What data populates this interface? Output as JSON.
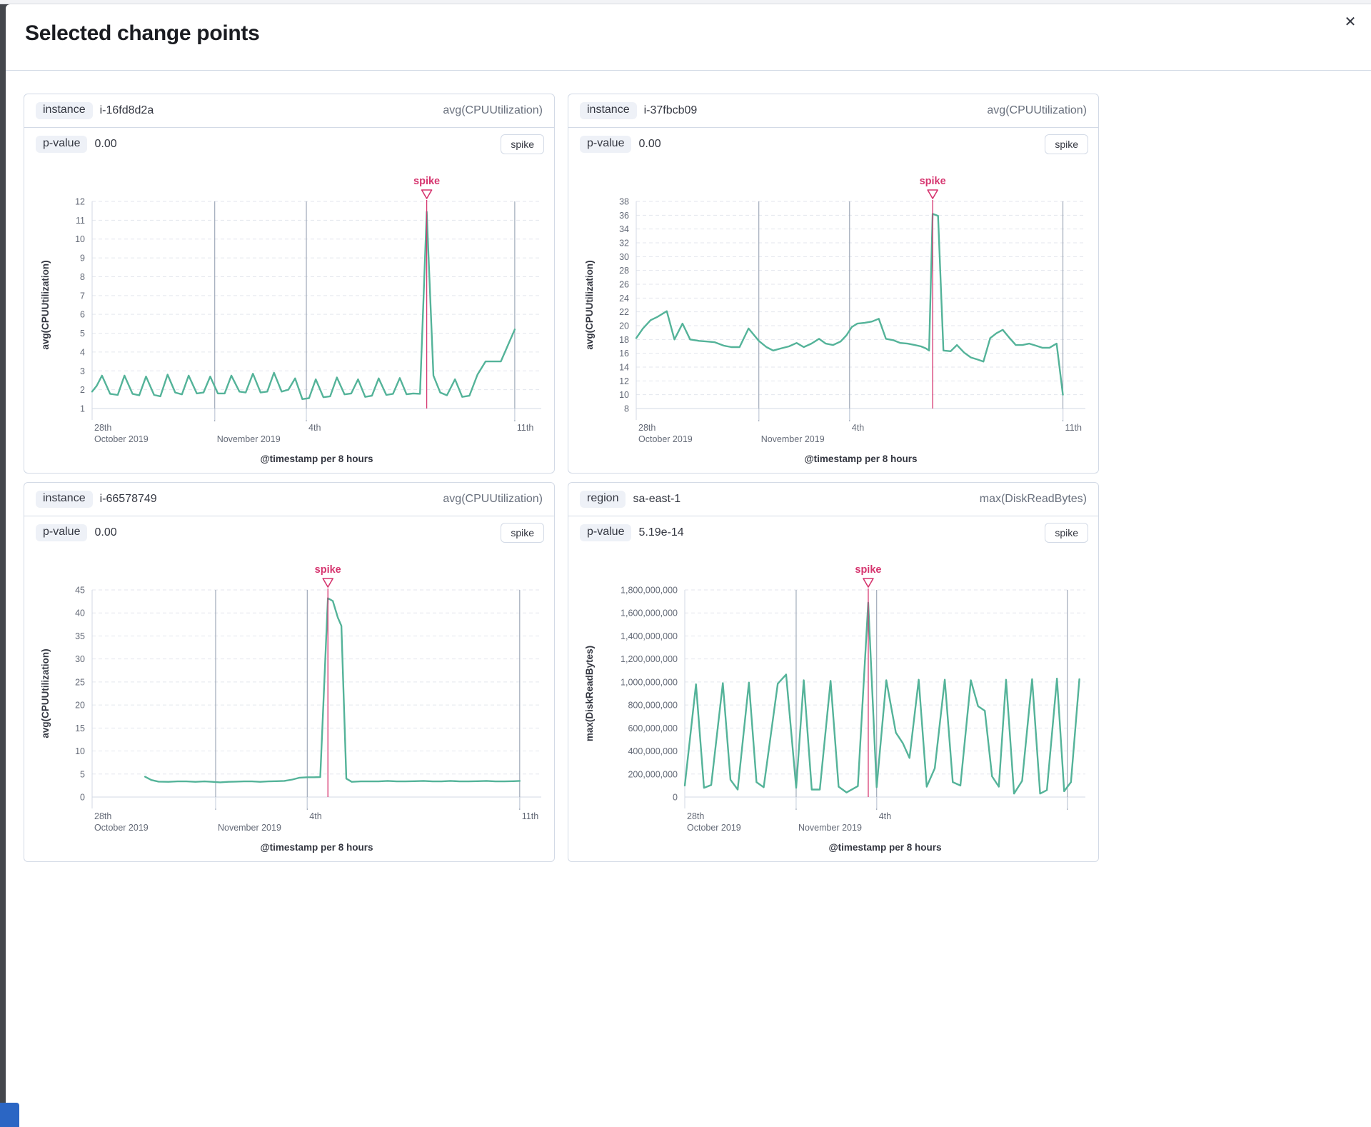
{
  "modal": {
    "title": "Selected change points",
    "close_icon": "✕"
  },
  "colors": {
    "series": "#54B399",
    "annotation": "#D6356F",
    "event_line": "#98A2B3",
    "grid": "#E3E6ED",
    "axis": "#D3DAE6",
    "tick_text": "#646A77",
    "title_text": "#343741"
  },
  "panels": [
    {
      "key_label": "instance",
      "key_value": "i-16fd8d2a",
      "metric": "avg(CPUUtilization)",
      "p_label": "p-value",
      "p_value": "0.00",
      "badge_label": "spike"
    },
    {
      "key_label": "instance",
      "key_value": "i-37fbcb09",
      "metric": "avg(CPUUtilization)",
      "p_label": "p-value",
      "p_value": "0.00",
      "badge_label": "spike"
    },
    {
      "key_label": "instance",
      "key_value": "i-66578749",
      "metric": "avg(CPUUtilization)",
      "p_label": "p-value",
      "p_value": "0.00",
      "badge_label": "spike"
    },
    {
      "key_label": "region",
      "key_value": "sa-east-1",
      "metric": "max(DiskReadBytes)",
      "p_label": "p-value",
      "p_value": "5.19e-14",
      "badge_label": "spike"
    }
  ],
  "chart_data": [
    {
      "type": "line",
      "title": "i-16fd8d2a avg(CPUUtilization)",
      "ylabel": "avg(CPUUtilization)",
      "xlabel": "@timestamp per 8 hours",
      "ylim": [
        1,
        12
      ],
      "ytick_step": 1,
      "ytick_format": "plain",
      "grid": true,
      "x_ticks": [
        {
          "pos": 0.0,
          "top": "28th",
          "bottom": "October 2019",
          "line": false
        },
        {
          "pos": 0.273,
          "top": "",
          "bottom": "November 2019",
          "line": true
        },
        {
          "pos": 0.477,
          "top": "4th",
          "bottom": "",
          "line": true
        },
        {
          "pos": 0.941,
          "top": "11th",
          "bottom": "",
          "line": true
        }
      ],
      "annotation": {
        "label": "spike",
        "pos": 0.745
      },
      "series": [
        [
          0.0,
          1.9
        ],
        [
          0.01,
          2.2
        ],
        [
          0.022,
          2.75
        ],
        [
          0.04,
          1.78
        ],
        [
          0.057,
          1.72
        ],
        [
          0.072,
          2.75
        ],
        [
          0.09,
          1.78
        ],
        [
          0.105,
          1.7
        ],
        [
          0.12,
          2.7
        ],
        [
          0.138,
          1.72
        ],
        [
          0.152,
          1.65
        ],
        [
          0.168,
          2.8
        ],
        [
          0.185,
          1.85
        ],
        [
          0.2,
          1.75
        ],
        [
          0.215,
          2.75
        ],
        [
          0.233,
          1.8
        ],
        [
          0.248,
          1.85
        ],
        [
          0.263,
          2.7
        ],
        [
          0.28,
          1.8
        ],
        [
          0.295,
          1.8
        ],
        [
          0.31,
          2.75
        ],
        [
          0.328,
          1.9
        ],
        [
          0.342,
          1.85
        ],
        [
          0.358,
          2.85
        ],
        [
          0.375,
          1.85
        ],
        [
          0.39,
          1.9
        ],
        [
          0.405,
          2.9
        ],
        [
          0.422,
          1.9
        ],
        [
          0.437,
          2.0
        ],
        [
          0.452,
          2.6
        ],
        [
          0.468,
          1.5
        ],
        [
          0.483,
          1.55
        ],
        [
          0.498,
          2.55
        ],
        [
          0.515,
          1.6
        ],
        [
          0.53,
          1.65
        ],
        [
          0.545,
          2.65
        ],
        [
          0.562,
          1.75
        ],
        [
          0.577,
          1.8
        ],
        [
          0.592,
          2.55
        ],
        [
          0.608,
          1.62
        ],
        [
          0.623,
          1.68
        ],
        [
          0.638,
          2.6
        ],
        [
          0.655,
          1.72
        ],
        [
          0.67,
          1.78
        ],
        [
          0.685,
          2.62
        ],
        [
          0.7,
          1.76
        ],
        [
          0.715,
          1.8
        ],
        [
          0.73,
          1.78
        ],
        [
          0.745,
          11.45
        ],
        [
          0.76,
          2.75
        ],
        [
          0.775,
          1.85
        ],
        [
          0.79,
          1.7
        ],
        [
          0.808,
          2.55
        ],
        [
          0.824,
          1.62
        ],
        [
          0.84,
          1.68
        ],
        [
          0.858,
          2.8
        ],
        [
          0.876,
          3.5
        ],
        [
          0.91,
          3.5
        ],
        [
          0.941,
          5.2
        ]
      ]
    },
    {
      "type": "line",
      "title": "i-37fbcb09 avg(CPUUtilization)",
      "ylabel": "avg(CPUUtilization)",
      "xlabel": "@timestamp per 8 hours",
      "ylim": [
        8,
        38
      ],
      "ytick_step": 2,
      "ytick_format": "plain",
      "grid": true,
      "x_ticks": [
        {
          "pos": 0.0,
          "top": "28th",
          "bottom": "October 2019",
          "line": false
        },
        {
          "pos": 0.273,
          "top": "",
          "bottom": "November 2019",
          "line": true
        },
        {
          "pos": 0.475,
          "top": "4th",
          "bottom": "",
          "line": true
        },
        {
          "pos": 0.95,
          "top": "11th",
          "bottom": "",
          "line": true
        }
      ],
      "annotation": {
        "label": "spike",
        "pos": 0.66
      },
      "series": [
        [
          0.0,
          18.2
        ],
        [
          0.015,
          19.6
        ],
        [
          0.032,
          20.8
        ],
        [
          0.048,
          21.3
        ],
        [
          0.068,
          22.1
        ],
        [
          0.085,
          18.0
        ],
        [
          0.103,
          20.3
        ],
        [
          0.12,
          18.0
        ],
        [
          0.14,
          17.8
        ],
        [
          0.158,
          17.7
        ],
        [
          0.175,
          17.6
        ],
        [
          0.195,
          17.1
        ],
        [
          0.212,
          16.9
        ],
        [
          0.23,
          16.9
        ],
        [
          0.25,
          19.6
        ],
        [
          0.273,
          17.8
        ],
        [
          0.29,
          16.9
        ],
        [
          0.305,
          16.4
        ],
        [
          0.322,
          16.7
        ],
        [
          0.34,
          17.0
        ],
        [
          0.357,
          17.5
        ],
        [
          0.373,
          16.9
        ],
        [
          0.39,
          17.4
        ],
        [
          0.407,
          18.1
        ],
        [
          0.422,
          17.4
        ],
        [
          0.438,
          17.2
        ],
        [
          0.455,
          17.7
        ],
        [
          0.468,
          18.6
        ],
        [
          0.48,
          19.8
        ],
        [
          0.492,
          20.3
        ],
        [
          0.508,
          20.4
        ],
        [
          0.525,
          20.6
        ],
        [
          0.54,
          21.0
        ],
        [
          0.556,
          18.1
        ],
        [
          0.572,
          17.9
        ],
        [
          0.588,
          17.5
        ],
        [
          0.604,
          17.4
        ],
        [
          0.62,
          17.2
        ],
        [
          0.634,
          17.0
        ],
        [
          0.645,
          16.7
        ],
        [
          0.652,
          16.4
        ],
        [
          0.66,
          36.2
        ],
        [
          0.672,
          35.9
        ],
        [
          0.684,
          16.4
        ],
        [
          0.7,
          16.3
        ],
        [
          0.714,
          17.2
        ],
        [
          0.73,
          16.1
        ],
        [
          0.745,
          15.4
        ],
        [
          0.76,
          15.1
        ],
        [
          0.773,
          14.8
        ],
        [
          0.788,
          18.2
        ],
        [
          0.802,
          18.9
        ],
        [
          0.816,
          19.4
        ],
        [
          0.83,
          18.3
        ],
        [
          0.845,
          17.2
        ],
        [
          0.86,
          17.2
        ],
        [
          0.875,
          17.4
        ],
        [
          0.89,
          17.1
        ],
        [
          0.904,
          16.8
        ],
        [
          0.92,
          16.8
        ],
        [
          0.936,
          17.4
        ],
        [
          0.95,
          10.0
        ]
      ]
    },
    {
      "type": "line",
      "title": "i-66578749 avg(CPUUtilization)",
      "ylabel": "avg(CPUUtilization)",
      "xlabel": "@timestamp per 8 hours",
      "ylim": [
        0,
        45
      ],
      "ytick_step": 5,
      "ytick_format": "plain",
      "grid": true,
      "x_ticks": [
        {
          "pos": 0.0,
          "top": "28th",
          "bottom": "October 2019",
          "line": false
        },
        {
          "pos": 0.275,
          "top": "",
          "bottom": "November 2019",
          "line": true
        },
        {
          "pos": 0.479,
          "top": "4th",
          "bottom": "",
          "line": true
        },
        {
          "pos": 0.952,
          "top": "11th",
          "bottom": "",
          "line": true
        }
      ],
      "annotation": {
        "label": "spike",
        "pos": 0.525
      },
      "series": [
        [
          0.118,
          4.4
        ],
        [
          0.132,
          3.7
        ],
        [
          0.148,
          3.35
        ],
        [
          0.17,
          3.3
        ],
        [
          0.19,
          3.4
        ],
        [
          0.21,
          3.4
        ],
        [
          0.23,
          3.3
        ],
        [
          0.25,
          3.4
        ],
        [
          0.268,
          3.3
        ],
        [
          0.285,
          3.2
        ],
        [
          0.303,
          3.3
        ],
        [
          0.32,
          3.35
        ],
        [
          0.338,
          3.4
        ],
        [
          0.356,
          3.4
        ],
        [
          0.374,
          3.3
        ],
        [
          0.392,
          3.4
        ],
        [
          0.41,
          3.45
        ],
        [
          0.428,
          3.5
        ],
        [
          0.446,
          3.8
        ],
        [
          0.462,
          4.2
        ],
        [
          0.479,
          4.3
        ],
        [
          0.494,
          4.3
        ],
        [
          0.508,
          4.35
        ],
        [
          0.525,
          43.2
        ],
        [
          0.536,
          42.6
        ],
        [
          0.547,
          39.0
        ],
        [
          0.555,
          37.2
        ],
        [
          0.566,
          4.0
        ],
        [
          0.578,
          3.3
        ],
        [
          0.598,
          3.4
        ],
        [
          0.618,
          3.4
        ],
        [
          0.638,
          3.4
        ],
        [
          0.658,
          3.5
        ],
        [
          0.678,
          3.4
        ],
        [
          0.698,
          3.4
        ],
        [
          0.718,
          3.45
        ],
        [
          0.738,
          3.5
        ],
        [
          0.758,
          3.4
        ],
        [
          0.778,
          3.4
        ],
        [
          0.798,
          3.5
        ],
        [
          0.818,
          3.4
        ],
        [
          0.838,
          3.4
        ],
        [
          0.858,
          3.45
        ],
        [
          0.878,
          3.5
        ],
        [
          0.898,
          3.4
        ],
        [
          0.918,
          3.4
        ],
        [
          0.938,
          3.45
        ],
        [
          0.952,
          3.5
        ]
      ]
    },
    {
      "type": "line",
      "title": "sa-east-1 max(DiskReadBytes)",
      "ylabel": "max(DiskReadBytes)",
      "xlabel": "@timestamp per 8 hours",
      "ylim": [
        0,
        1800000000
      ],
      "ytick_step": 200000000,
      "ytick_format": "thousands",
      "grid": true,
      "x_ticks": [
        {
          "pos": 0.0,
          "top": "28th",
          "bottom": "October 2019",
          "line": false
        },
        {
          "pos": 0.278,
          "top": "",
          "bottom": "November 2019",
          "line": true
        },
        {
          "pos": 0.479,
          "top": "4th",
          "bottom": "",
          "line": true
        },
        {
          "pos": 0.955,
          "top": "",
          "bottom": "",
          "line": true
        }
      ],
      "annotation": {
        "label": "spike",
        "pos": 0.458
      },
      "series": [
        [
          0.0,
          100000000
        ],
        [
          0.028,
          980000000
        ],
        [
          0.048,
          80000000
        ],
        [
          0.066,
          105000000
        ],
        [
          0.095,
          990000000
        ],
        [
          0.114,
          150000000
        ],
        [
          0.132,
          65000000
        ],
        [
          0.16,
          995000000
        ],
        [
          0.179,
          130000000
        ],
        [
          0.197,
          85000000
        ],
        [
          0.232,
          985000000
        ],
        [
          0.253,
          1065000000
        ],
        [
          0.278,
          80000000
        ],
        [
          0.297,
          1015000000
        ],
        [
          0.317,
          65000000
        ],
        [
          0.337,
          65000000
        ],
        [
          0.364,
          1010000000
        ],
        [
          0.384,
          90000000
        ],
        [
          0.404,
          40000000
        ],
        [
          0.432,
          95000000
        ],
        [
          0.458,
          1690000000
        ],
        [
          0.479,
          85000000
        ],
        [
          0.503,
          1015000000
        ],
        [
          0.527,
          560000000
        ],
        [
          0.544,
          470000000
        ],
        [
          0.561,
          340000000
        ],
        [
          0.584,
          1020000000
        ],
        [
          0.604,
          90000000
        ],
        [
          0.624,
          250000000
        ],
        [
          0.649,
          1020000000
        ],
        [
          0.669,
          130000000
        ],
        [
          0.688,
          100000000
        ],
        [
          0.714,
          1015000000
        ],
        [
          0.732,
          790000000
        ],
        [
          0.749,
          750000000
        ],
        [
          0.767,
          180000000
        ],
        [
          0.784,
          90000000
        ],
        [
          0.802,
          1020000000
        ],
        [
          0.822,
          30000000
        ],
        [
          0.842,
          140000000
        ],
        [
          0.867,
          1025000000
        ],
        [
          0.887,
          30000000
        ],
        [
          0.904,
          60000000
        ],
        [
          0.929,
          1030000000
        ],
        [
          0.947,
          50000000
        ],
        [
          0.964,
          130000000
        ],
        [
          0.985,
          1025000000
        ]
      ]
    }
  ]
}
